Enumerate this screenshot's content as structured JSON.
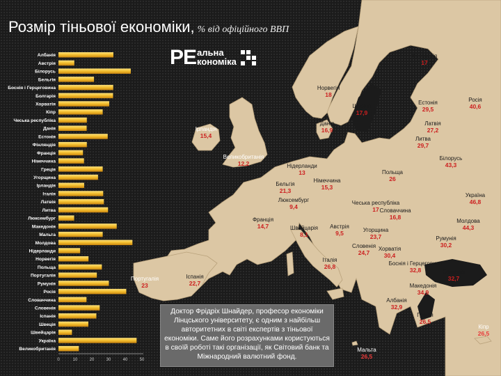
{
  "title": "Розмір тіньової економіки,",
  "subtitle": "% від офіційного ВВП",
  "logo": {
    "main": "PE",
    "line1": "альна",
    "line2": "кономіка"
  },
  "note": "Доктор Фрідріх Шнайдер, професор економіки Лінцського університету, є одним з найбільш авторитетних в світі експертів з тіньової економіки. Саме його розрахунками користуються в своїй роботі такі організації, як Світовий банк та Міжнародний валютний фонд.",
  "colors": {
    "bar_top": "#f7d14a",
    "bar_bottom": "#d08a12",
    "map_land": "#dcc7a4",
    "map_sea": "#1b1b1b",
    "value_red": "#cc1f1f"
  },
  "chart_data": {
    "type": "bar",
    "orientation": "horizontal",
    "categories": [
      "Албанія",
      "Австрія",
      "Білорусь",
      "Бельгія",
      "Боснія і Герцеговина",
      "Болгарія",
      "Хорватія",
      "Кіпр",
      "Чеська республіка",
      "Данія",
      "Естонія",
      "Фінляндія",
      "Франція",
      "Німеччина",
      "Греція",
      "Угорщина",
      "Ірландія",
      "Італія",
      "Латвія",
      "Литва",
      "Люксембург",
      "Македонія",
      "Мальта",
      "Молдова",
      "Нідерланди",
      "Норвегія",
      "Польща",
      "Португалія",
      "Румунія",
      "Росія",
      "Словаччина",
      "Словенія",
      "Іспанія",
      "Швеція",
      "Швейцарія",
      "Україна",
      "Великобританія"
    ],
    "values": [
      32.9,
      9.5,
      43.3,
      21.3,
      32.8,
      32.7,
      30.4,
      26.5,
      17,
      16.9,
      29.5,
      17,
      14.7,
      15.3,
      26.5,
      23.7,
      15.4,
      26.8,
      27.2,
      29.7,
      9.4,
      34.9,
      26.5,
      44.3,
      13,
      18,
      26,
      23,
      30.2,
      40.6,
      16.8,
      24.7,
      22.7,
      17.9,
      8.1,
      46.8,
      12.2
    ],
    "xticks": [
      0,
      10,
      20,
      30,
      40,
      50
    ],
    "xlim": [
      0,
      50
    ],
    "xlabel": "",
    "ylabel": ""
  },
  "map_labels": [
    {
      "name": "Ірландія",
      "value": "15,4"
    },
    {
      "name": "Великобританія",
      "value": "12,2"
    },
    {
      "name": "Норвегія",
      "value": "18"
    },
    {
      "name": "Швеція",
      "value": "17,9"
    },
    {
      "name": "Фінляндія",
      "value": "17"
    },
    {
      "name": "Данія",
      "value": "16,9"
    },
    {
      "name": "Естонія",
      "value": "29,5"
    },
    {
      "name": "Росія",
      "value": "40,6"
    },
    {
      "name": "Латвія",
      "value": "27,2"
    },
    {
      "name": "Литва",
      "value": "29,7"
    },
    {
      "name": "Білорусь",
      "value": "43,3"
    },
    {
      "name": "Нідерланди",
      "value": "13"
    },
    {
      "name": "Бельгія",
      "value": "21,3"
    },
    {
      "name": "Німеччина",
      "value": "15,3"
    },
    {
      "name": "Польща",
      "value": "26"
    },
    {
      "name": "Люксембург",
      "value": "9,4"
    },
    {
      "name": "Чеська республіка",
      "value": "17"
    },
    {
      "name": "Україна",
      "value": "46,8"
    },
    {
      "name": "Словаччина",
      "value": "16,8"
    },
    {
      "name": "Франція",
      "value": "14,7"
    },
    {
      "name": "Швейцарія",
      "value": "8,1"
    },
    {
      "name": "Австрія",
      "value": "9,5"
    },
    {
      "name": "Угорщина",
      "value": "23,7"
    },
    {
      "name": "Молдова",
      "value": "44,3"
    },
    {
      "name": "Словенія",
      "value": "24,7"
    },
    {
      "name": "Хорватія",
      "value": "30,4"
    },
    {
      "name": "Румунія",
      "value": "30,2"
    },
    {
      "name": "Італія",
      "value": "26,8"
    },
    {
      "name": "Боснія і Герцеговина",
      "value": "32,8"
    },
    {
      "name": "Болгарія",
      "value": "32,7"
    },
    {
      "name": "Португалія",
      "value": "23"
    },
    {
      "name": "Іспанія",
      "value": "22,7"
    },
    {
      "name": "Македонія",
      "value": "34,9"
    },
    {
      "name": "Албанія",
      "value": "32,9"
    },
    {
      "name": "Греція",
      "value": "26,5"
    },
    {
      "name": "Кіпр",
      "value": "26,5"
    },
    {
      "name": "Мальта",
      "value": "26,5"
    }
  ]
}
